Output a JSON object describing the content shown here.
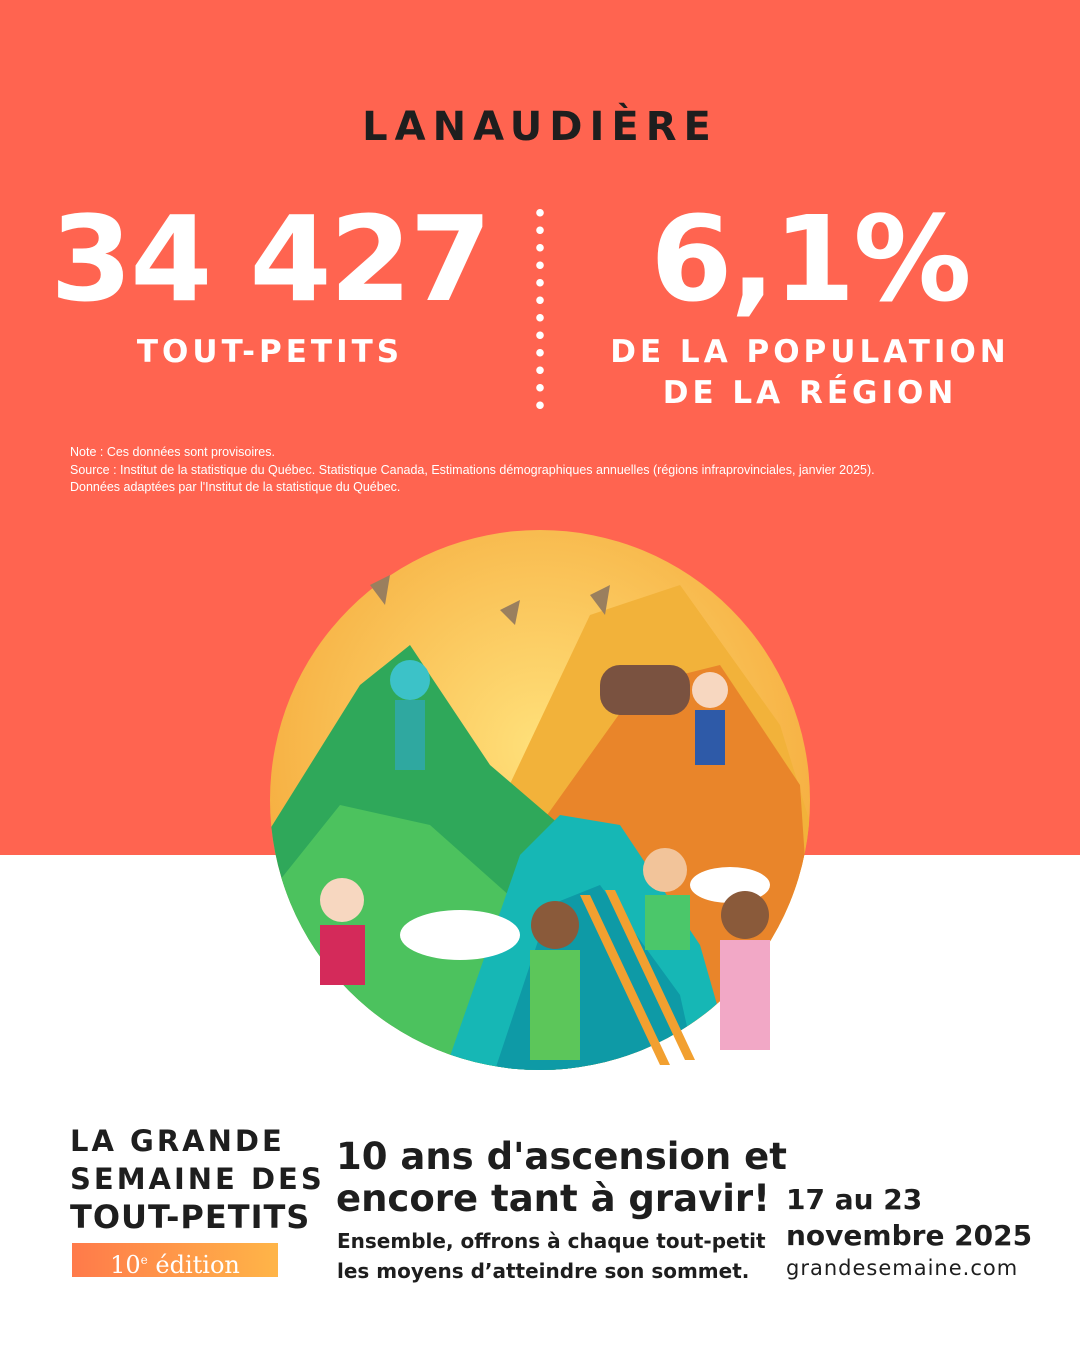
{
  "region": "LANAUDIÈRE",
  "stat1": {
    "value": "34 427",
    "label": "TOUT-PETITS"
  },
  "stat2": {
    "value": "6,1%",
    "label_line1": "DE LA POPULATION",
    "label_line2": "DE LA RÉGION"
  },
  "notes": {
    "note": "Note : Ces données sont provisoires.",
    "source": "Source : Institut de la statistique du Québec. Statistique Canada, Estimations démographiques annuelles (régions infraprovinciales, janvier 2025).",
    "adapted": "Données adaptées par l'Institut de la statistique du Québec."
  },
  "logo": {
    "line1": "LA GRANDE",
    "line2": "SEMAINE DES",
    "line3": "TOUT-PETITS",
    "edition_num": "10",
    "edition_sup": "e",
    "edition_word": " édition"
  },
  "slogan": {
    "line1": "10 ans d'ascension et",
    "line2": "encore tant à gravir!",
    "sub1": "Ensemble, offrons à chaque tout-petit",
    "sub2": "les moyens d’atteindre son sommet."
  },
  "event": {
    "date_line1": "17 au 23",
    "date_line2": "novembre 2025",
    "url": "grandesemaine.com"
  },
  "colors": {
    "background_top": "#FF6450",
    "text_dark": "#1e1e1e",
    "edition_gradient_start": "#FF7A4A",
    "edition_gradient_end": "#FFB548"
  }
}
